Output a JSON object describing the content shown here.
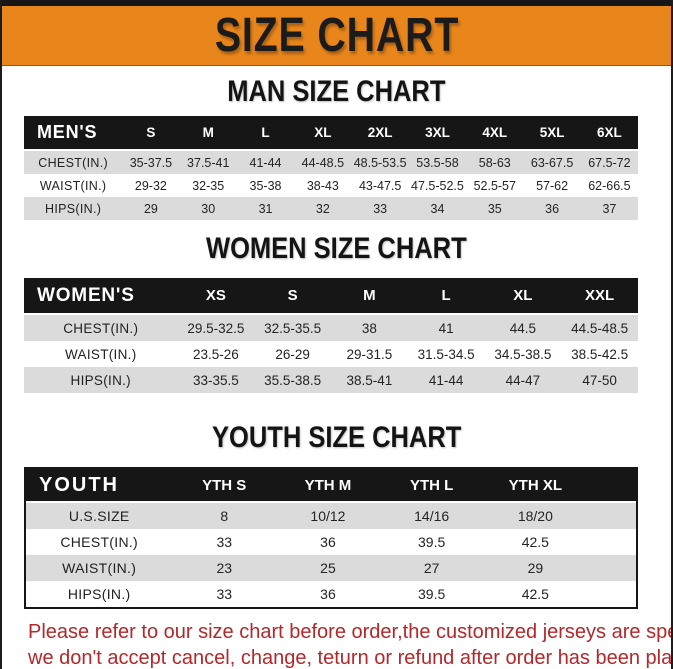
{
  "title": "SIZE CHART",
  "theme": {
    "banner_bg": "#E8861B",
    "banner_text": "#1B1B1B",
    "header_bar_bg": "#161616",
    "header_bar_text": "#FFFFFF",
    "row_alt_bg": "#DBDBDB",
    "note_color": "#B3282B"
  },
  "sections": [
    {
      "heading": "MAN SIZE CHART",
      "label": "MEN'S",
      "columns": [
        "S",
        "M",
        "L",
        "XL",
        "2XL",
        "3XL",
        "4XL",
        "5XL",
        "6XL"
      ],
      "rows": [
        {
          "label": "CHEST(IN.)",
          "values": [
            "35-37.5",
            "37.5-41",
            "41-44",
            "44-48.5",
            "48.5-53.5",
            "53.5-58",
            "58-63",
            "63-67.5",
            "67.5-72"
          ]
        },
        {
          "label": "WAIST(IN.)",
          "values": [
            "29-32",
            "32-35",
            "35-38",
            "38-43",
            "43-47.5",
            "47.5-52.5",
            "52.5-57",
            "57-62",
            "62-66.5"
          ]
        },
        {
          "label": "HIPS(IN.)",
          "values": [
            "29",
            "30",
            "31",
            "32",
            "33",
            "34",
            "35",
            "36",
            "37"
          ]
        }
      ]
    },
    {
      "heading": "WOMEN SIZE CHART",
      "label": "WOMEN'S",
      "columns": [
        "XS",
        "S",
        "M",
        "L",
        "XL",
        "XXL"
      ],
      "rows": [
        {
          "label": "CHEST(IN.)",
          "values": [
            "29.5-32.5",
            "32.5-35.5",
            "38",
            "41",
            "44.5",
            "44.5-48.5"
          ]
        },
        {
          "label": "WAIST(IN.)",
          "values": [
            "23.5-26",
            "26-29",
            "29-31.5",
            "31.5-34.5",
            "34.5-38.5",
            "38.5-42.5"
          ]
        },
        {
          "label": "HIPS(IN.)",
          "values": [
            "33-35.5",
            "35.5-38.5",
            "38.5-41",
            "41-44",
            "44-47",
            "47-50"
          ]
        }
      ]
    },
    {
      "heading": "YOUTH SIZE CHART",
      "label": "YOUTH",
      "columns": [
        "YTH S",
        "YTH M",
        "YTH L",
        "YTH XL"
      ],
      "rows": [
        {
          "label": "U.S.SIZE",
          "values": [
            "8",
            "10/12",
            "14/16",
            "18/20"
          ]
        },
        {
          "label": "CHEST(IN.)",
          "values": [
            "33",
            "36",
            "39.5",
            "42.5"
          ]
        },
        {
          "label": "WAIST(IN.)",
          "values": [
            "23",
            "25",
            "27",
            "29"
          ]
        },
        {
          "label": "HIPS(IN.)",
          "values": [
            "33",
            "36",
            "39.5",
            "42.5"
          ]
        }
      ]
    }
  ],
  "note": {
    "line1": "Please refer to our size chart before order,the customized jerseys are special products,",
    "line2": "we don't accept cancel, change, teturn or refund after order has been placed!"
  }
}
